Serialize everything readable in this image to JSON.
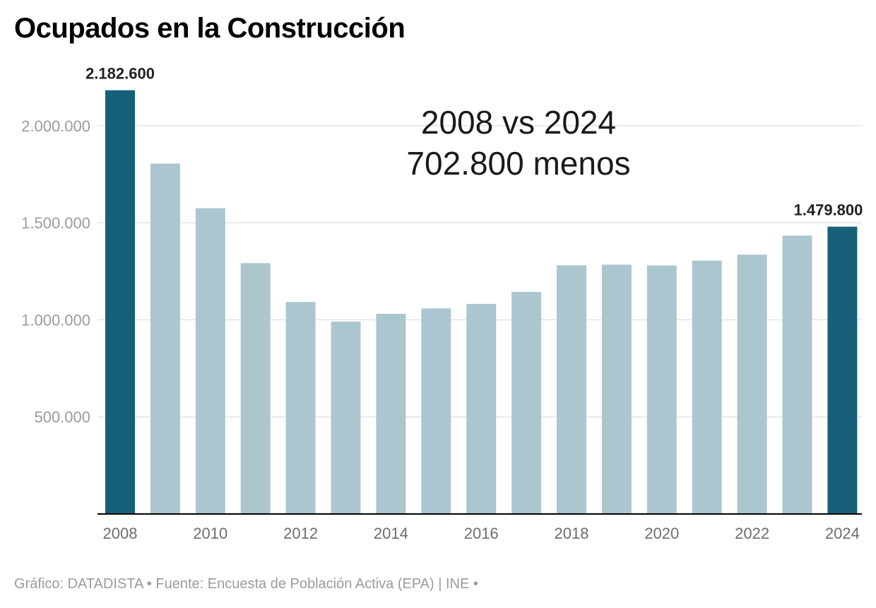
{
  "chart_data": {
    "type": "bar",
    "title": "Ocupados en la Construcción",
    "categories": [
      "2008",
      "2009",
      "2010",
      "2011",
      "2012",
      "2013",
      "2014",
      "2015",
      "2016",
      "2017",
      "2018",
      "2019",
      "2020",
      "2021",
      "2022",
      "2023",
      "2024"
    ],
    "values": [
      2182600,
      1805000,
      1575000,
      1292000,
      1092000,
      991000,
      1031000,
      1059000,
      1082000,
      1144000,
      1281000,
      1284000,
      1280000,
      1305000,
      1336000,
      1434000,
      1479800
    ],
    "highlight_indices": [
      0,
      16
    ],
    "x_tick_labels": [
      "2008",
      "2010",
      "2012",
      "2014",
      "2016",
      "2018",
      "2020",
      "2022",
      "2024"
    ],
    "y_ticks": [
      500000,
      1000000,
      1500000,
      2000000
    ],
    "y_tick_labels": [
      "500.000",
      "1.000.000",
      "1.500.000",
      "2.000.000"
    ],
    "ylim": [
      0,
      2200000
    ],
    "data_labels": [
      {
        "index": 0,
        "text": "2.182.600"
      },
      {
        "index": 16,
        "text": "1.479.800"
      }
    ],
    "annotation": {
      "line1": "2008 vs 2024",
      "line2": "702.800 menos"
    },
    "xlabel": "",
    "ylabel": "",
    "grid": true,
    "colors": {
      "highlight": "#17607a",
      "bar": "#acc6cf",
      "grid": "#e4e4e4",
      "axis": "#000000",
      "tick_text": "#9b9b9b",
      "x_tick_text": "#6d6d6d",
      "label_text": "#222222",
      "annotation_text": "#1a1a1a"
    }
  },
  "footer": {
    "source": "Gráfico: DATADISTA • Fuente: Encuesta de Población Activa (EPA) | INE •"
  }
}
